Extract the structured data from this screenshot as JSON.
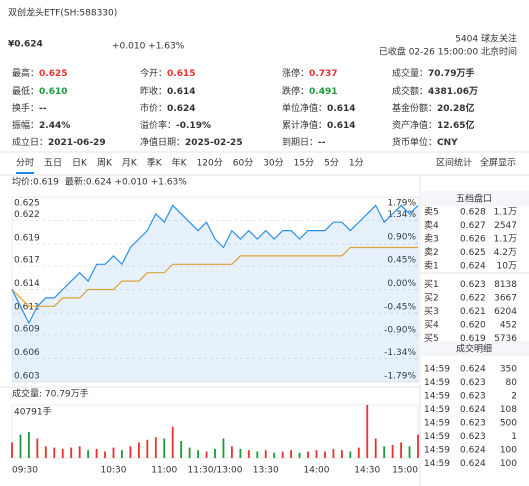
{
  "header": {
    "title": "双创龙头ETF(SH:588330)",
    "price": "¥0.624",
    "change": "+0.010 +1.63%",
    "followers": "5404 球友关注",
    "status": "已收盘 02-26 15:00:00 北京时间",
    "color": "#e93030"
  },
  "stats": [
    [
      {
        "label": "最高：",
        "value": "0.625",
        "color": "#e93030"
      },
      {
        "label": "今开：",
        "value": "0.615",
        "color": "#e93030"
      },
      {
        "label": "涨停：",
        "value": "0.737",
        "color": "#e93030"
      },
      {
        "label": "成交量：",
        "value": "70.79万手"
      }
    ],
    [
      {
        "label": "最低：",
        "value": "0.610",
        "color": "#1a9a3a"
      },
      {
        "label": "昨收：",
        "value": "0.614"
      },
      {
        "label": "跌停：",
        "value": "0.491",
        "color": "#1a9a3a"
      },
      {
        "label": "成交额：",
        "value": "4381.06万"
      }
    ],
    [
      {
        "label": "换手：",
        "value": "--"
      },
      {
        "label": "市价：",
        "value": "0.624"
      },
      {
        "label": "单位净值：",
        "value": "0.614"
      },
      {
        "label": "基金份额：",
        "value": "20.28亿"
      }
    ],
    [
      {
        "label": "振幅：",
        "value": "2.44%"
      },
      {
        "label": "溢价率：",
        "value": "-0.19%"
      },
      {
        "label": "累计净值：",
        "value": "0.614"
      },
      {
        "label": "资产净值：",
        "value": "12.65亿"
      }
    ],
    [
      {
        "label": "成立日：",
        "value": "2021-06-29"
      },
      {
        "label": "净值日期：",
        "value": "2025-02-25"
      },
      {
        "label": "到期日：",
        "value": "--"
      },
      {
        "label": "货币单位：",
        "value": "CNY"
      }
    ]
  ],
  "tabs": {
    "items": [
      "分时",
      "五日",
      "日K",
      "周K",
      "月K",
      "季K",
      "年K",
      "120分",
      "60分",
      "30分",
      "15分",
      "5分",
      "1分"
    ],
    "active": 0,
    "links": [
      "区间统计",
      "全屏显示"
    ],
    "color": "#1e88e5"
  },
  "chart_data": [
    {
      "type": "line",
      "x": [
        "09:30",
        "09:35",
        "09:40",
        "09:45",
        "09:50",
        "09:55",
        "10:00",
        "10:05",
        "10:10",
        "10:15",
        "10:20",
        "10:25",
        "10:30",
        "10:35",
        "10:40",
        "10:45",
        "10:50",
        "10:55",
        "11:00",
        "11:05",
        "11:10",
        "11:15",
        "11:20",
        "11:25",
        "11:30",
        "13:05",
        "13:10",
        "13:15",
        "13:20",
        "13:25",
        "13:30",
        "13:35",
        "13:40",
        "13:45",
        "13:50",
        "13:55",
        "14:00",
        "14:05",
        "14:10",
        "14:15",
        "14:20",
        "14:25",
        "14:30",
        "14:35",
        "14:40",
        "14:45",
        "14:50",
        "14:55",
        "15:00"
      ],
      "series": [
        {
          "name": "均价:0.619",
          "color": "#f5a623",
          "label_color": "#f5a623",
          "values": [
            0.614,
            0.613,
            0.612,
            0.612,
            0.612,
            0.612,
            0.613,
            0.613,
            0.613,
            0.614,
            0.614,
            0.614,
            0.614,
            0.615,
            0.615,
            0.615,
            0.616,
            0.616,
            0.616,
            0.617,
            0.617,
            0.617,
            0.617,
            0.617,
            0.617,
            0.617,
            0.617,
            0.618,
            0.618,
            0.618,
            0.618,
            0.618,
            0.618,
            0.618,
            0.618,
            0.618,
            0.618,
            0.618,
            0.618,
            0.618,
            0.619,
            0.619,
            0.619,
            0.619,
            0.619,
            0.619,
            0.619,
            0.619,
            0.619
          ]
        },
        {
          "name": "最新:0.624 +0.010 +1.63%",
          "color": "#2f8fe6",
          "label_color": "#e93030",
          "area": true,
          "values": [
            0.614,
            0.612,
            0.61,
            0.612,
            0.613,
            0.613,
            0.614,
            0.615,
            0.616,
            0.615,
            0.617,
            0.617,
            0.618,
            0.617,
            0.619,
            0.62,
            0.621,
            0.623,
            0.622,
            0.624,
            0.623,
            0.622,
            0.621,
            0.622,
            0.62,
            0.619,
            0.621,
            0.62,
            0.621,
            0.62,
            0.621,
            0.62,
            0.621,
            0.621,
            0.62,
            0.621,
            0.621,
            0.621,
            0.622,
            0.622,
            0.621,
            0.622,
            0.623,
            0.624,
            0.622,
            0.623,
            0.624,
            0.623,
            0.624
          ]
        }
      ],
      "ylim": [
        0.603,
        0.625
      ],
      "yticks": [
        0.625,
        {
          "value": 0.6222,
          "label": "0.622"
        },
        {
          "value": 0.6194,
          "label": "0.619"
        },
        {
          "value": 0.6168,
          "label": "0.617"
        },
        0.614,
        {
          "value": 0.6112,
          "label": "0.611"
        },
        {
          "value": 0.6086,
          "label": "0.609"
        },
        {
          "value": 0.6058,
          "label": "0.606"
        },
        0.603
      ],
      "y2lim": [
        -1.79,
        1.79
      ],
      "y2ticks": [
        {
          "value": 1.79,
          "label": "1.79%"
        },
        {
          "value": 1.34,
          "label": "1.34%"
        },
        {
          "value": 0.9,
          "label": "0.90%"
        },
        {
          "value": 0.45,
          "label": "0.45%"
        },
        {
          "value": 0,
          "label": "0.00%"
        },
        {
          "value": -0.45,
          "label": "-0.45%"
        },
        {
          "value": -0.9,
          "label": "-0.90%"
        },
        {
          "value": -1.34,
          "label": "-1.34%"
        },
        {
          "value": -1.79,
          "label": "-1.79%"
        }
      ],
      "grid": true,
      "up_color": "#e93030",
      "down_color": "#1a9a3a"
    },
    {
      "type": "bar",
      "title": "成交量: 70.79万手",
      "x": [
        "09:30",
        "09:35",
        "09:40",
        "09:45",
        "09:50",
        "09:55",
        "10:00",
        "10:05",
        "10:10",
        "10:15",
        "10:20",
        "10:25",
        "10:30",
        "10:35",
        "10:40",
        "10:45",
        "10:50",
        "10:55",
        "11:00",
        "11:05",
        "11:10",
        "11:15",
        "11:20",
        "11:25",
        "11:30",
        "13:05",
        "13:10",
        "13:15",
        "13:20",
        "13:25",
        "13:30",
        "13:35",
        "13:40",
        "13:45",
        "13:50",
        "13:55",
        "14:00",
        "14:05",
        "14:10",
        "14:15",
        "14:20",
        "14:25",
        "14:30",
        "14:35",
        "14:40",
        "14:45",
        "14:50",
        "14:55",
        "15:00"
      ],
      "values": [
        12000,
        18000,
        20000,
        15000,
        9000,
        8000,
        7000,
        8000,
        9000,
        6000,
        7000,
        5000,
        8000,
        6000,
        9000,
        12000,
        14000,
        16000,
        15000,
        24000,
        13000,
        8000,
        6000,
        5000,
        7000,
        15000,
        9000,
        7000,
        6000,
        5000,
        6000,
        4000,
        5000,
        6000,
        4000,
        5000,
        6000,
        5000,
        7000,
        6000,
        5000,
        8000,
        40791,
        15000,
        9000,
        10000,
        12000,
        9000,
        18000
      ],
      "ylim": [
        0,
        40791
      ],
      "yticks": [
        {
          "value": 40791,
          "label": "40791手"
        }
      ],
      "xticks": [
        "09:30",
        "10:30",
        "11:00",
        "11:30/13:00",
        "13:30",
        "14:00",
        "14:30",
        "15:00"
      ],
      "up_color": "#e93030",
      "down_color": "#1a9a3a"
    }
  ],
  "order_book": {
    "title": "五档盘口",
    "color": "#e93030",
    "rows": [
      {
        "label": "卖5",
        "price": "0.628",
        "volume": "1.1万"
      },
      {
        "label": "卖4",
        "price": "0.627",
        "volume": "2547"
      },
      {
        "label": "卖3",
        "price": "0.626",
        "volume": "1.1万"
      },
      {
        "label": "卖2",
        "price": "0.625",
        "volume": "4.2万"
      },
      {
        "label": "卖1",
        "price": "0.624",
        "volume": "10万"
      },
      {
        "label": "买1",
        "price": "0.623",
        "volume": "8138"
      },
      {
        "label": "买2",
        "price": "0.622",
        "volume": "3667"
      },
      {
        "label": "买3",
        "price": "0.621",
        "volume": "6204"
      },
      {
        "label": "买4",
        "price": "0.620",
        "volume": "452"
      },
      {
        "label": "买5",
        "price": "0.619",
        "volume": "5736"
      }
    ]
  },
  "trades": {
    "title": "成交明细",
    "color": "#e93030",
    "rows": [
      {
        "time": "14:59",
        "price": "0.624",
        "volume": "350",
        "color": "#e93030"
      },
      {
        "time": "14:59",
        "price": "0.623",
        "volume": "80",
        "color": "#1a9a3a"
      },
      {
        "time": "14:59",
        "price": "0.623",
        "volume": "2",
        "color": "#e93030"
      },
      {
        "time": "14:59",
        "price": "0.624",
        "volume": "108",
        "color": "#e93030"
      },
      {
        "time": "14:59",
        "price": "0.623",
        "volume": "500",
        "color": "#1a9a3a"
      },
      {
        "time": "14:59",
        "price": "0.623",
        "volume": "1",
        "color": "#1a9a3a"
      },
      {
        "time": "14:59",
        "price": "0.624",
        "volume": "100",
        "color": "#e93030"
      },
      {
        "time": "14:59",
        "price": "0.624",
        "volume": "100",
        "color": "#e93030"
      }
    ]
  }
}
